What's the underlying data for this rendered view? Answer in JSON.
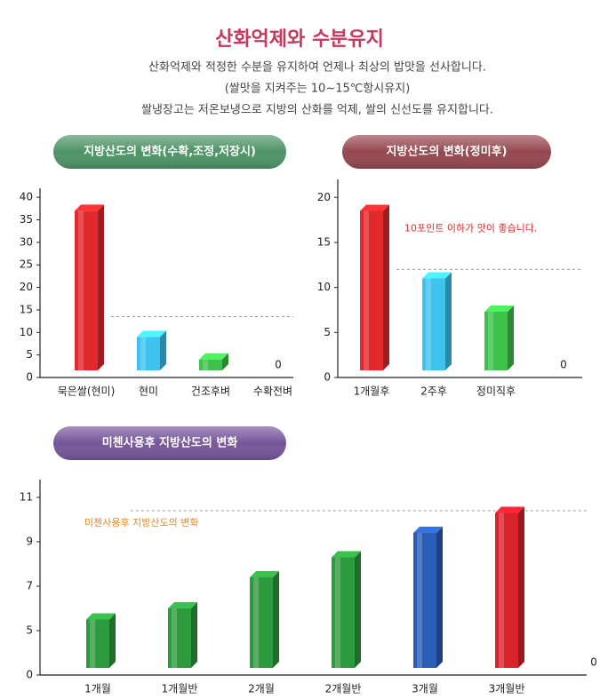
{
  "header": {
    "title": "산화억제와 수분유지",
    "lines": [
      "산화억제와 적정한 수분을 유지하여 언제나 최상의 밥맛을 선사합니다.",
      "(쌀맛을 지켜주는 10~15℃항시유지)",
      "쌀냉장고는 저온보냉으로 지방의 산화를 억제, 쌀의 신선도를 유지합니다."
    ]
  },
  "chart_data": [
    {
      "type": "bar3d",
      "title": "지방산도의 변화(수확,조정,저장시)",
      "title_color": "#4e9466",
      "categories": [
        "묵은쌀(현미)",
        "현미",
        "건조후벼",
        "수확전벼"
      ],
      "values": [
        37,
        9,
        4,
        0
      ],
      "colors": [
        "#e2292b",
        "#3ec3ee",
        "#3dc24b",
        "#3dc24b"
      ],
      "ylim": [
        0,
        42
      ],
      "yticks": [
        0,
        5,
        10,
        15,
        20,
        25,
        30,
        35,
        40
      ],
      "reference_line": 13.5
    },
    {
      "type": "bar3d",
      "title": "지방산도의 변화(정미후)",
      "title_color": "#95484f",
      "categories": [
        "1개월후",
        "2주후",
        "정미직후",
        null
      ],
      "values": [
        18.5,
        11,
        7.3,
        0
      ],
      "colors": [
        "#e2292b",
        "#3ec3ee",
        "#3dc24b",
        "#3dc24b"
      ],
      "ylim": [
        0,
        22
      ],
      "yticks": [
        0,
        5,
        10,
        15,
        20
      ],
      "reference_line": 12,
      "annotation": "10포인트 이하가 맛이 좋습니다.",
      "annotation_color": "#d0302c"
    },
    {
      "type": "bar3d",
      "title": "미첸사용후 지방산도의 변화",
      "title_color": "#76569a",
      "categories": [
        "1개월",
        "1개월반",
        "2개월",
        "2개월반",
        "3개월",
        "3개월반",
        null
      ],
      "values": [
        5.5,
        6,
        7.4,
        8.3,
        9.4,
        10.3,
        0
      ],
      "colors": [
        "#2e9a3e",
        "#2e9a3e",
        "#2e9a3e",
        "#2e9a3e",
        "#2a5db6",
        "#d8222c",
        "#d8222c"
      ],
      "ylim": [
        0,
        11.8
      ],
      "yticks": [
        0,
        5,
        7,
        9,
        11
      ],
      "axis_break": true,
      "reference_line": 10.4,
      "annotation": "미첸사용후 지방산도의 변화",
      "annotation_color": "#e0892a"
    }
  ]
}
